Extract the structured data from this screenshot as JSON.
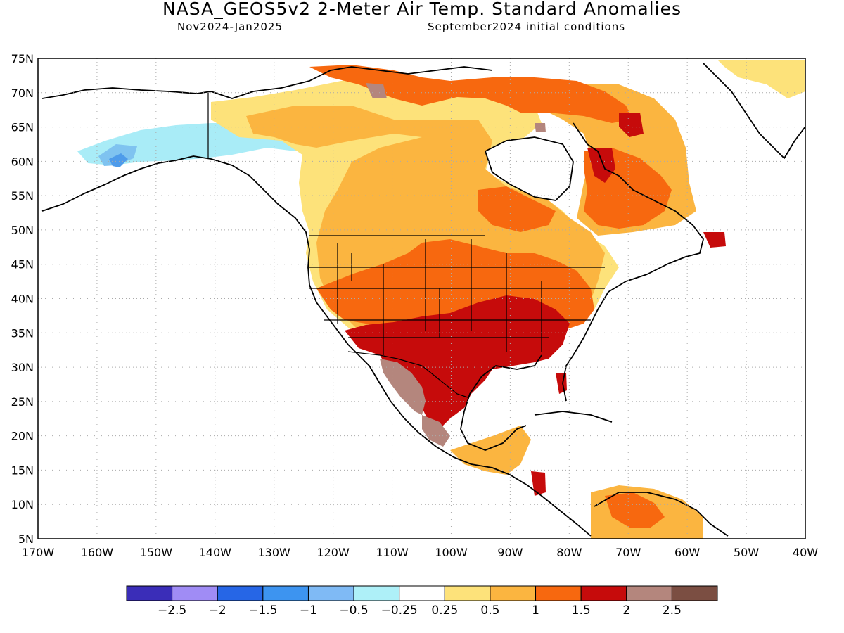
{
  "header": {
    "title": "NASA_GEOS5v2 2-Meter Air Temp. Standard Anomalies",
    "period": "Nov2024-Jan2025",
    "initial_conditions": "September2024 initial conditions"
  },
  "map": {
    "lat_labels": [
      "75N",
      "70N",
      "65N",
      "60N",
      "55N",
      "50N",
      "45N",
      "40N",
      "35N",
      "30N",
      "25N",
      "20N",
      "15N",
      "10N",
      "5N"
    ],
    "lon_labels": [
      "170W",
      "160W",
      "150W",
      "140W",
      "130W",
      "120W",
      "110W",
      "100W",
      "90W",
      "80W",
      "70W",
      "60W",
      "50W",
      "40W"
    ],
    "lat_range": [
      5,
      75
    ],
    "lon_range": [
      -170,
      -40
    ],
    "grid": "dotted",
    "field_colors": {
      "light_blue": "#a9ecf7",
      "mid_blue": "#7fc3f0",
      "blue": "#4e9bea",
      "yellow": "#fde27a",
      "light_orange": "#fbb540",
      "orange": "#f7680f",
      "dark_red": "#c60b0b",
      "brown": "#b4867d",
      "dark_brown": "#7b4e42"
    }
  },
  "colorbar": {
    "colors": [
      "#3a2db8",
      "#a08cf5",
      "#2666e6",
      "#3d94f0",
      "#7fbaf5",
      "#aef0f8",
      "#ffffff",
      "#fde27a",
      "#fbb540",
      "#f7680f",
      "#c60b0b",
      "#b4867d",
      "#7b4e42"
    ],
    "labels": [
      "−2.5",
      "−2",
      "−1.5",
      "−1",
      "−0.5",
      "−0.25",
      "0.25",
      "0.5",
      "1",
      "1.5",
      "2",
      "2.5"
    ]
  }
}
